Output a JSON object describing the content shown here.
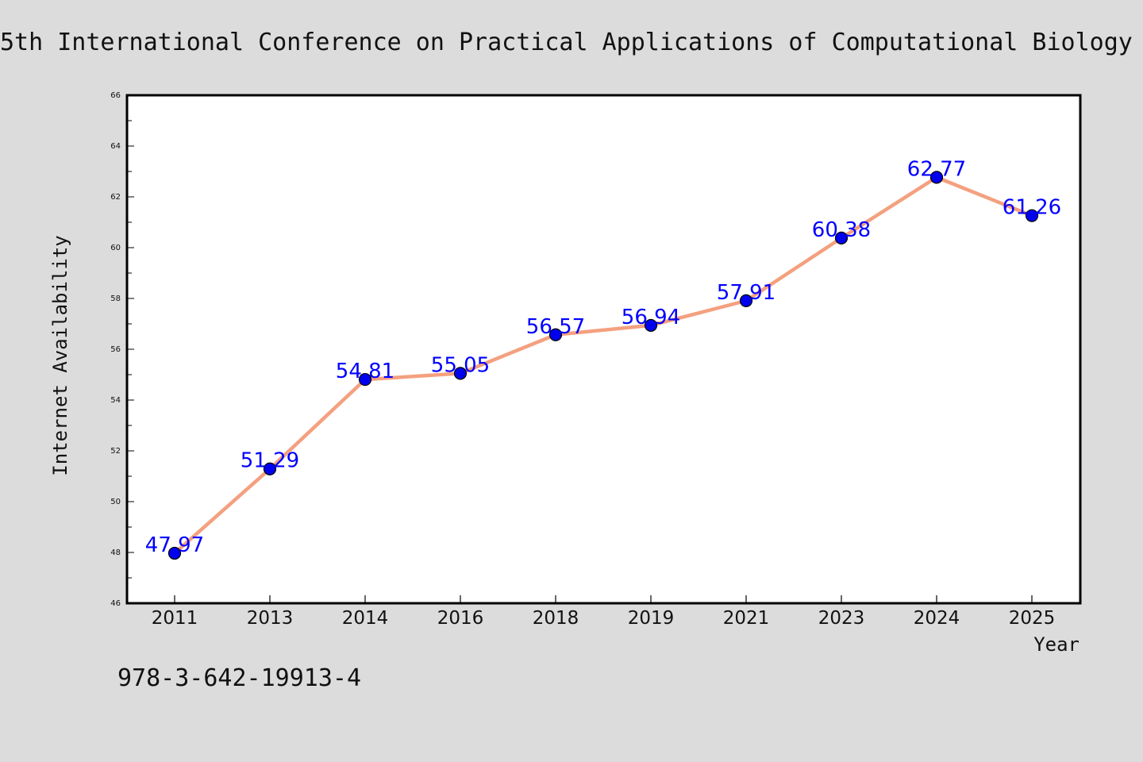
{
  "chart_data": {
    "type": "line",
    "title": "5th International Conference on Practical Applications of Computational Biology",
    "xlabel": "Year",
    "ylabel": "Internet Availability",
    "categories": [
      "2011",
      "2013",
      "2014",
      "2016",
      "2018",
      "2019",
      "2021",
      "2023",
      "2024",
      "2025"
    ],
    "series": [
      {
        "values": [
          47.97,
          51.29,
          54.81,
          55.05,
          56.57,
          56.94,
          57.91,
          60.38,
          62.77,
          61.26
        ],
        "labels": [
          "47.97",
          "51.29",
          "54.81",
          "55.05",
          "56.57",
          "56.94",
          "57.91",
          "60.38",
          "62.77",
          "61.26"
        ]
      }
    ],
    "ylim": [
      46,
      66
    ],
    "yticks": [
      46,
      48,
      50,
      52,
      54,
      56,
      58,
      60,
      62,
      64,
      66
    ],
    "grid": false,
    "legend": "none",
    "colors": {
      "line": "#f4a07f",
      "marker": "#0000ee",
      "data_label": "#0000ff",
      "background": "#dcdcdc",
      "plot_background": "#ffffff"
    }
  },
  "footnote": "978-3-642-19913-4"
}
